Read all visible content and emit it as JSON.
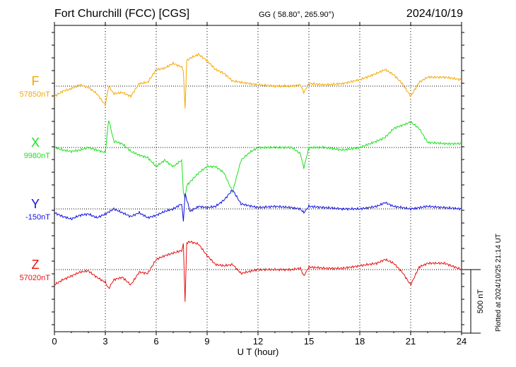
{
  "header": {
    "station": "Fort Churchill (FCC)  [CGS]",
    "coordinates": "GG ( 58.80°, 265.90°)",
    "date": "2024/10/19"
  },
  "footer": {
    "plotted": "Plotted at 2024/10/25 21:14 UT"
  },
  "chart_data": {
    "type": "line",
    "xlabel": "U T (hour)",
    "xlim": [
      0,
      24
    ],
    "xticks": [
      "0",
      "3",
      "6",
      "9",
      "12",
      "15",
      "18",
      "21",
      "24"
    ],
    "scale_bar": {
      "label": "500 nT",
      "value_nT": 500
    },
    "grid": true,
    "series": [
      {
        "name": "F",
        "baseline": "57850nT",
        "baseline_value": 57850,
        "color": "#f5a800",
        "x": [
          0,
          0.5,
          1,
          1.5,
          2,
          2.5,
          3,
          3.2,
          3.5,
          4,
          4.5,
          5,
          5.5,
          6,
          6.5,
          7,
          7.5,
          7.6,
          7.7,
          7.8,
          8,
          8.5,
          9,
          9.5,
          10,
          10.5,
          11,
          12,
          13,
          14,
          14.5,
          14.7,
          15,
          16,
          17,
          18,
          19,
          19.5,
          20,
          20.5,
          21,
          21.5,
          22,
          23,
          24
        ],
        "values": [
          -80,
          -40,
          -20,
          10,
          -10,
          -60,
          -150,
          0,
          -60,
          -50,
          -80,
          20,
          30,
          130,
          140,
          180,
          150,
          120,
          -180,
          200,
          220,
          250,
          200,
          130,
          100,
          40,
          30,
          10,
          0,
          0,
          10,
          -50,
          20,
          10,
          20,
          50,
          100,
          130,
          90,
          20,
          -80,
          30,
          70,
          70,
          50
        ]
      },
      {
        "name": "X",
        "baseline": "9980nT",
        "baseline_value": 9980,
        "color": "#1fe01f",
        "x": [
          0,
          0.5,
          1,
          1.5,
          2,
          2.5,
          3,
          3.2,
          3.5,
          4,
          4.5,
          5,
          5.5,
          6,
          6.5,
          7,
          7.5,
          7.6,
          7.7,
          7.8,
          8,
          8.5,
          9,
          9.5,
          10,
          10.5,
          11,
          11.5,
          12,
          13,
          14,
          14.5,
          14.7,
          15,
          16,
          17,
          18,
          19,
          19.5,
          20,
          21,
          21.5,
          22,
          23,
          24
        ],
        "values": [
          0,
          -20,
          -30,
          -20,
          0,
          -20,
          -40,
          220,
          50,
          30,
          -30,
          -60,
          -80,
          -150,
          -100,
          -150,
          -100,
          -350,
          -400,
          -300,
          -270,
          -200,
          -150,
          -150,
          -200,
          -350,
          -100,
          -40,
          0,
          0,
          0,
          -50,
          -160,
          0,
          0,
          -20,
          0,
          50,
          80,
          150,
          200,
          150,
          40,
          30,
          30
        ]
      },
      {
        "name": "Y",
        "baseline": "-150nT",
        "baseline_value": -150,
        "color": "#1010e0",
        "x": [
          0,
          0.5,
          1,
          1.5,
          2,
          2.5,
          3,
          3.5,
          4,
          4.5,
          5,
          5.5,
          6,
          6.5,
          7,
          7.5,
          7.6,
          7.7,
          8,
          8.5,
          9,
          9.5,
          10,
          10.5,
          11,
          12,
          13,
          14,
          14.5,
          14.7,
          15,
          16,
          17,
          18,
          19,
          19.5,
          20,
          21,
          22,
          23,
          24
        ],
        "values": [
          -30,
          -60,
          -80,
          -50,
          -40,
          -70,
          -40,
          0,
          -30,
          -60,
          -30,
          -70,
          -50,
          -20,
          0,
          40,
          -100,
          120,
          -20,
          20,
          10,
          20,
          70,
          150,
          40,
          10,
          20,
          10,
          0,
          -30,
          20,
          10,
          0,
          0,
          20,
          50,
          20,
          0,
          20,
          10,
          0
        ]
      },
      {
        "name": "Z",
        "baseline": "57020nT",
        "baseline_value": 57020,
        "color": "#e81010",
        "x": [
          0,
          0.5,
          1,
          1.5,
          2,
          2.5,
          3,
          3.2,
          3.5,
          4,
          4.5,
          5,
          5.5,
          6,
          6.5,
          7,
          7.5,
          7.6,
          7.7,
          7.8,
          8,
          8.5,
          9,
          9.5,
          10,
          10.5,
          11,
          12,
          13,
          14,
          14.5,
          14.7,
          15,
          16,
          17,
          18,
          19,
          19.5,
          20,
          20.5,
          21,
          21.5,
          22,
          23,
          24
        ],
        "values": [
          -120,
          -80,
          -50,
          -20,
          -10,
          -60,
          -100,
          -150,
          -80,
          -60,
          -120,
          -20,
          -30,
          80,
          110,
          130,
          150,
          200,
          -250,
          210,
          220,
          200,
          110,
          40,
          30,
          40,
          -30,
          0,
          0,
          0,
          10,
          -50,
          20,
          10,
          10,
          30,
          50,
          80,
          50,
          -20,
          -120,
          20,
          50,
          50,
          0
        ]
      }
    ]
  }
}
